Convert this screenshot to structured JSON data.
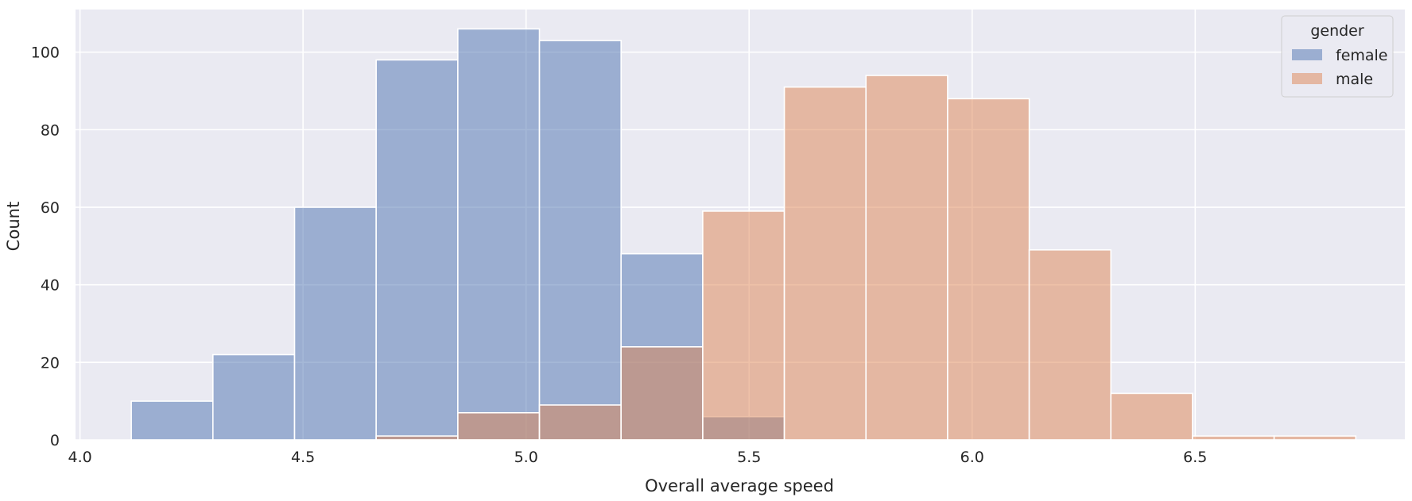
{
  "chart_data": {
    "type": "bar",
    "subtype": "histogram",
    "xlabel": "Overall average speed",
    "ylabel": "Count",
    "xlim": [
      3.99,
      6.97
    ],
    "ylim": [
      0,
      111
    ],
    "x_ticks": [
      4.0,
      4.5,
      5.0,
      5.5,
      6.0,
      6.5
    ],
    "x_tick_labels": [
      "4.0",
      "4.5",
      "5.0",
      "5.5",
      "6.0",
      "6.5"
    ],
    "y_ticks": [
      0,
      20,
      40,
      60,
      80,
      100
    ],
    "y_tick_labels": [
      "0",
      "20",
      "40",
      "60",
      "80",
      "100"
    ],
    "bin_edges": [
      4.115,
      4.298,
      4.481,
      4.664,
      4.847,
      5.03,
      5.213,
      5.396,
      5.579,
      5.762,
      5.945,
      6.128,
      6.311,
      6.494,
      6.677,
      6.86
    ],
    "series": [
      {
        "name": "female",
        "color": "#4c72b0",
        "values": [
          10,
          22,
          60,
          98,
          106,
          103,
          48,
          6,
          0,
          0,
          0,
          0,
          0,
          0,
          0
        ]
      },
      {
        "name": "male",
        "color": "#dd8452",
        "values": [
          0,
          0,
          0,
          1,
          7,
          9,
          24,
          59,
          91,
          94,
          88,
          49,
          12,
          1,
          1
        ]
      }
    ],
    "legend": {
      "title": "gender",
      "position": "top-right",
      "entries": [
        "female",
        "male"
      ]
    },
    "grid": true,
    "background_color": "#eaeaf2",
    "grid_color": "#ffffff"
  }
}
